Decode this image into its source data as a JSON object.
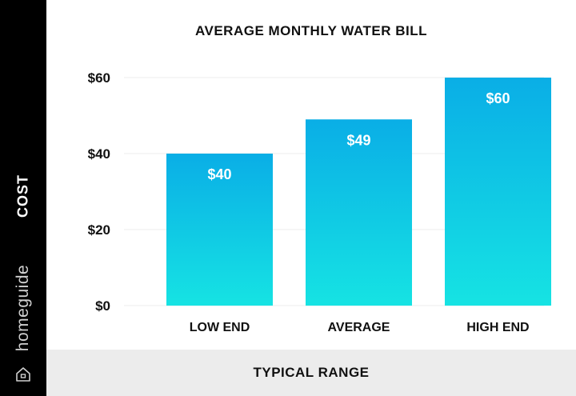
{
  "chart_data": {
    "type": "bar",
    "title": "AVERAGE MONTHLY WATER BILL",
    "xlabel": "TYPICAL RANGE",
    "ylabel": "COST",
    "categories": [
      "LOW END",
      "AVERAGE",
      "HIGH END"
    ],
    "values": [
      40,
      49,
      60
    ],
    "data_labels": [
      "$40",
      "$49",
      "$60"
    ],
    "y_ticks": [
      0,
      20,
      40,
      60
    ],
    "y_tick_labels": [
      "$0",
      "$20",
      "$40",
      "$60"
    ],
    "ylim": [
      0,
      60
    ],
    "grid": true,
    "colors": {
      "bar_top": "#0aaee6",
      "bar_bottom": "#16e3e3",
      "grid": "#eeeeee"
    }
  },
  "branding": {
    "name": "homeguide",
    "icon": "house-icon"
  }
}
